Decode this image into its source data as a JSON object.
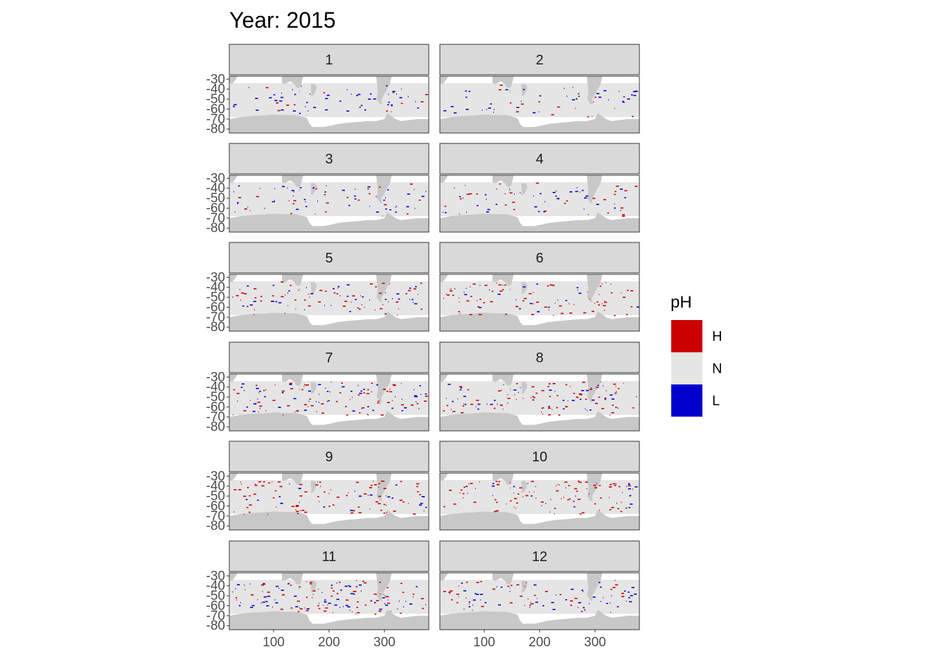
{
  "chart_data": {
    "type": "heatmap",
    "title": "Year: 2015",
    "xlabel": "",
    "ylabel": "",
    "xlim": [
      20,
      380
    ],
    "ylim": [
      -84,
      -27
    ],
    "x_ticks": [
      100,
      200,
      300
    ],
    "y_ticks": [
      -30,
      -40,
      -50,
      -60,
      -70,
      -80
    ],
    "panels": [
      "1",
      "2",
      "3",
      "4",
      "5",
      "6",
      "7",
      "8",
      "9",
      "10",
      "11",
      "12"
    ],
    "legend": {
      "title": "pH",
      "position": "right",
      "items": [
        {
          "label": "H",
          "color": "#cc0000"
        },
        {
          "label": "N",
          "color": "#e5e5e5"
        },
        {
          "label": "L",
          "color": "#0000cc"
        }
      ]
    },
    "colors": {
      "ocean": "#e5e5e5",
      "land": "#c8c8c8",
      "strip_bg": "#d9d9d9",
      "panel_border": "#333333"
    },
    "anomaly_intensity": [
      {
        "panel": "1",
        "H": 0.15,
        "L": 0.7
      },
      {
        "panel": "2",
        "H": 0.2,
        "L": 0.55
      },
      {
        "panel": "3",
        "H": 0.35,
        "L": 0.6
      },
      {
        "panel": "4",
        "H": 0.35,
        "L": 0.55
      },
      {
        "panel": "5",
        "H": 0.65,
        "L": 0.55
      },
      {
        "panel": "6",
        "H": 0.85,
        "L": 0.3
      },
      {
        "panel": "7",
        "H": 0.8,
        "L": 0.8
      },
      {
        "panel": "8",
        "H": 0.85,
        "L": 0.55
      },
      {
        "panel": "9",
        "H": 1.0,
        "L": 0.3
      },
      {
        "panel": "10",
        "H": 1.0,
        "L": 0.3
      },
      {
        "panel": "11",
        "H": 0.85,
        "L": 0.9
      },
      {
        "panel": "12",
        "H": 0.5,
        "L": 0.7
      }
    ]
  }
}
